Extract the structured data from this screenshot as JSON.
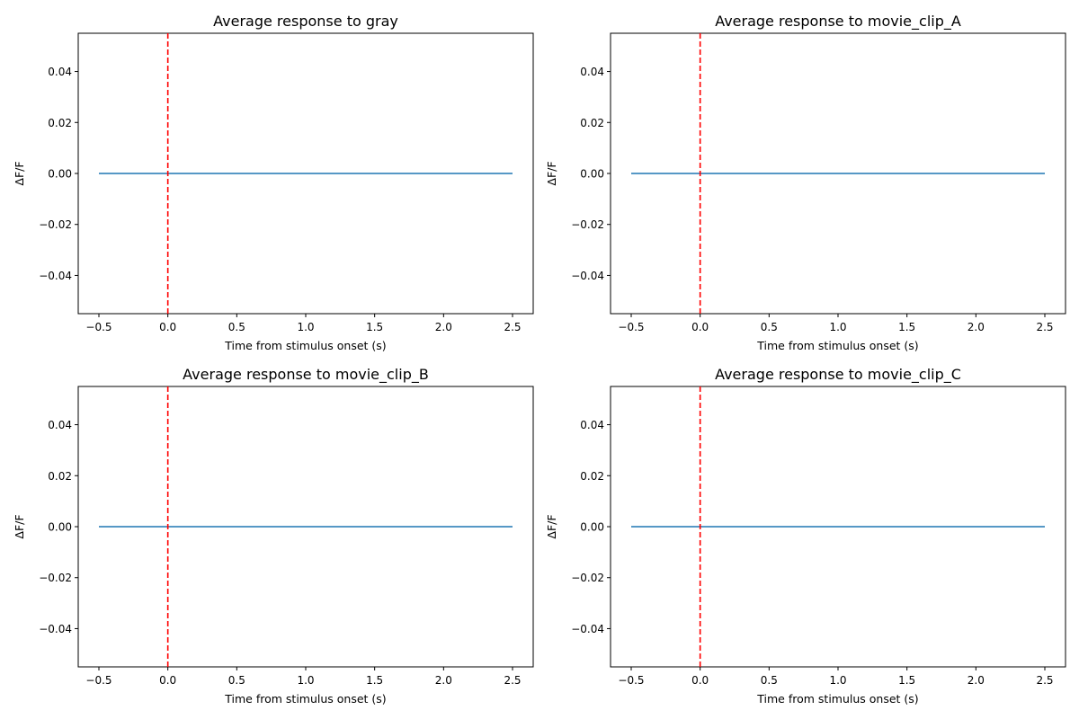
{
  "colors": {
    "series": "#1f77b4",
    "onset_line": "#ff0000",
    "axes": "#000000",
    "background": "#ffffff"
  },
  "chart_data": [
    {
      "type": "line",
      "title": "Average response to gray",
      "xlabel": "Time from stimulus onset (s)",
      "ylabel": "ΔF/F",
      "xlim": [
        -0.65,
        2.65
      ],
      "ylim": [
        -0.055,
        0.055
      ],
      "xticks": [
        -0.5,
        0.0,
        0.5,
        1.0,
        1.5,
        2.0,
        2.5
      ],
      "xtick_labels": [
        "−0.5",
        "0.0",
        "0.5",
        "1.0",
        "1.5",
        "2.0",
        "2.5"
      ],
      "yticks": [
        -0.04,
        -0.02,
        0.0,
        0.02,
        0.04
      ],
      "ytick_labels": [
        "−0.04",
        "−0.02",
        "0.00",
        "0.02",
        "0.04"
      ],
      "series": [
        {
          "x": [
            -0.5,
            2.5
          ],
          "y": [
            0.0,
            0.0
          ]
        }
      ],
      "vline": {
        "x": 0.0,
        "style": "dashed"
      },
      "grid": false
    },
    {
      "type": "line",
      "title": "Average response to movie_clip_A",
      "xlabel": "Time from stimulus onset (s)",
      "ylabel": "ΔF/F",
      "xlim": [
        -0.65,
        2.65
      ],
      "ylim": [
        -0.055,
        0.055
      ],
      "xticks": [
        -0.5,
        0.0,
        0.5,
        1.0,
        1.5,
        2.0,
        2.5
      ],
      "xtick_labels": [
        "−0.5",
        "0.0",
        "0.5",
        "1.0",
        "1.5",
        "2.0",
        "2.5"
      ],
      "yticks": [
        -0.04,
        -0.02,
        0.0,
        0.02,
        0.04
      ],
      "ytick_labels": [
        "−0.04",
        "−0.02",
        "0.00",
        "0.02",
        "0.04"
      ],
      "series": [
        {
          "x": [
            -0.5,
            2.5
          ],
          "y": [
            0.0,
            0.0
          ]
        }
      ],
      "vline": {
        "x": 0.0,
        "style": "dashed"
      },
      "grid": false
    },
    {
      "type": "line",
      "title": "Average response to movie_clip_B",
      "xlabel": "Time from stimulus onset (s)",
      "ylabel": "ΔF/F",
      "xlim": [
        -0.65,
        2.65
      ],
      "ylim": [
        -0.055,
        0.055
      ],
      "xticks": [
        -0.5,
        0.0,
        0.5,
        1.0,
        1.5,
        2.0,
        2.5
      ],
      "xtick_labels": [
        "−0.5",
        "0.0",
        "0.5",
        "1.0",
        "1.5",
        "2.0",
        "2.5"
      ],
      "yticks": [
        -0.04,
        -0.02,
        0.0,
        0.02,
        0.04
      ],
      "ytick_labels": [
        "−0.04",
        "−0.02",
        "0.00",
        "0.02",
        "0.04"
      ],
      "series": [
        {
          "x": [
            -0.5,
            2.5
          ],
          "y": [
            0.0,
            0.0
          ]
        }
      ],
      "vline": {
        "x": 0.0,
        "style": "dashed"
      },
      "grid": false
    },
    {
      "type": "line",
      "title": "Average response to movie_clip_C",
      "xlabel": "Time from stimulus onset (s)",
      "ylabel": "ΔF/F",
      "xlim": [
        -0.65,
        2.65
      ],
      "ylim": [
        -0.055,
        0.055
      ],
      "xticks": [
        -0.5,
        0.0,
        0.5,
        1.0,
        1.5,
        2.0,
        2.5
      ],
      "xtick_labels": [
        "−0.5",
        "0.0",
        "0.5",
        "1.0",
        "1.5",
        "2.0",
        "2.5"
      ],
      "yticks": [
        -0.04,
        -0.02,
        0.0,
        0.02,
        0.04
      ],
      "ytick_labels": [
        "−0.04",
        "−0.02",
        "0.00",
        "0.02",
        "0.04"
      ],
      "series": [
        {
          "x": [
            -0.5,
            2.5
          ],
          "y": [
            0.0,
            0.0
          ]
        }
      ],
      "vline": {
        "x": 0.0,
        "style": "dashed"
      },
      "grid": false
    }
  ]
}
